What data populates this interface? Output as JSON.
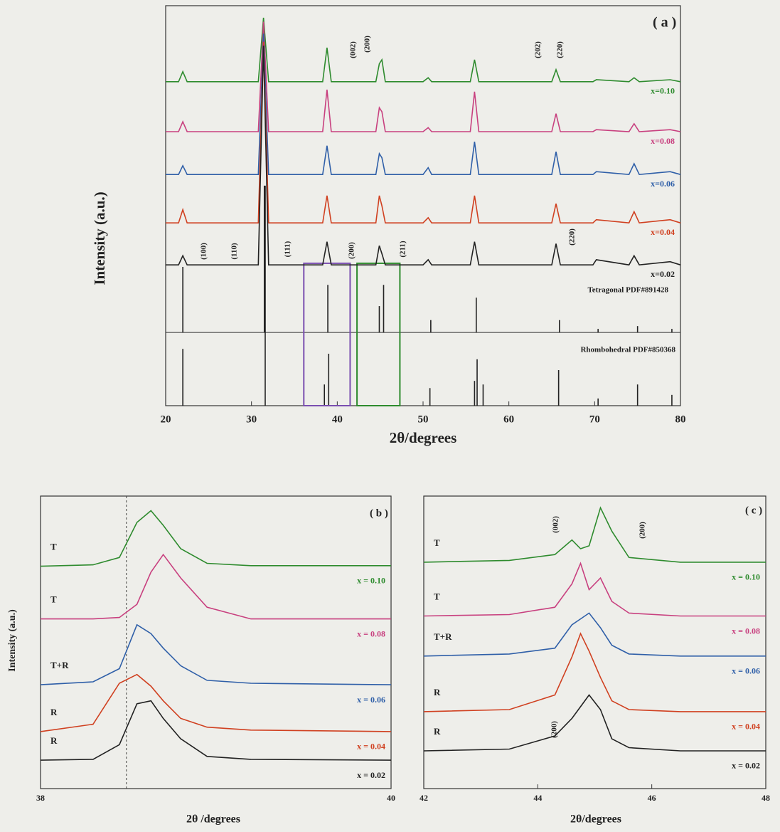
{
  "chart_data": [
    {
      "type": "line",
      "title": "( a )",
      "xlabel": "2θ/degrees",
      "ylabel": "Intensity (a.u.)",
      "xlim": [
        20,
        80
      ],
      "xticks": [
        20,
        30,
        40,
        50,
        60,
        70,
        80
      ],
      "ylim": [
        0,
        100
      ],
      "x": [
        20,
        21.5,
        22,
        22.5,
        30.8,
        31.4,
        32,
        38.3,
        38.8,
        39.3,
        44.5,
        44.9,
        45.2,
        45.6,
        50,
        50.6,
        51,
        55.5,
        56,
        56.5,
        65,
        65.5,
        66,
        69.8,
        70.2,
        74,
        74.6,
        75.2,
        78.8,
        80
      ],
      "series": [
        {
          "name": "x=0.10",
          "color": "#2e8b2e",
          "values": [
            81,
            81,
            83.5,
            81,
            81,
            97,
            81,
            81,
            89.5,
            81,
            81,
            85.5,
            86.5,
            81,
            81,
            82,
            81,
            81,
            86.5,
            81,
            81,
            84,
            81,
            81,
            81.5,
            81,
            82,
            81,
            81.5,
            81
          ]
        },
        {
          "name": "x=0.08",
          "color": "#c8407f",
          "values": [
            68.5,
            68.5,
            71,
            68.5,
            68.5,
            96,
            68.5,
            68.5,
            79,
            68.5,
            68.5,
            74.5,
            73.5,
            68.5,
            68.5,
            69.5,
            68.5,
            68.5,
            78.5,
            68.5,
            68.5,
            73,
            68.5,
            68.5,
            69,
            68.5,
            70.5,
            68.5,
            69,
            68.5
          ]
        },
        {
          "name": "x=0.06",
          "color": "#2f5fa8",
          "values": [
            57.8,
            57.8,
            60,
            57.8,
            57.8,
            93,
            57.8,
            57.8,
            65,
            57.8,
            57.8,
            63,
            62,
            57.8,
            57.8,
            59.5,
            57.8,
            57.8,
            66,
            57.8,
            57.8,
            63.5,
            57.8,
            57.8,
            58.5,
            57.8,
            60.5,
            57.8,
            58.5,
            57.8
          ]
        },
        {
          "name": "x=0.04",
          "color": "#d04020",
          "values": [
            45.7,
            45.7,
            49,
            45.7,
            45.7,
            91,
            45.7,
            45.7,
            52.5,
            45.7,
            45.7,
            52.5,
            50,
            45.7,
            45.7,
            47,
            45.7,
            45.7,
            52.5,
            45.7,
            45.7,
            50.5,
            45.7,
            45.7,
            46.5,
            45.7,
            48.5,
            45.7,
            46.5,
            45.7
          ]
        },
        {
          "name": "x=0.02",
          "color": "#222222",
          "values": [
            35.2,
            35.2,
            37.5,
            35.2,
            35.2,
            90,
            35.2,
            35.2,
            41,
            35.2,
            35.2,
            40,
            38,
            35.2,
            35.2,
            36.5,
            35.2,
            35.2,
            41,
            35.2,
            35.2,
            40.5,
            35.2,
            35.2,
            36.5,
            35.2,
            37.5,
            35.2,
            36,
            35.2
          ]
        }
      ],
      "reference_patterns": [
        {
          "name": "Tetragonal PDF#891428",
          "color": "#222222",
          "baseline": 18.3,
          "x": [
            22,
            31.5,
            38.9,
            44.9,
            45.4,
            50.9,
            56.2,
            65.9,
            70.4,
            75,
            79
          ],
          "values": [
            34.7,
            55,
            30.2,
            24.9,
            30.2,
            21.4,
            27,
            21.4,
            19.2,
            19.9,
            19.2
          ]
        },
        {
          "name": "Rhombohedral PDF#850368",
          "color": "#222222",
          "baseline": 0,
          "x": [
            22,
            31.6,
            38.5,
            39,
            50.8,
            56,
            56.3,
            57,
            65.8,
            70.4,
            75,
            79
          ],
          "values": [
            14.2,
            55,
            5.3,
            13,
            4.4,
            6.2,
            11.6,
            5.3,
            8.9,
            1.8,
            5.3,
            2.7
          ]
        }
      ],
      "highlight_boxes": [
        {
          "color": "#7a4fb0",
          "xlim": [
            36.1,
            41.5
          ],
          "ylim": [
            0,
            35.6
          ]
        },
        {
          "color": "#2e8b2e",
          "xlim": [
            42.3,
            47.3
          ],
          "ylim": [
            0,
            35.6
          ]
        }
      ],
      "annotations": [
        "(002)",
        "(200)",
        "(202)",
        "(220)",
        "(100)",
        "(110)",
        "(111)",
        "(200)",
        "(211)",
        "(220)"
      ]
    },
    {
      "type": "line",
      "title": "( b )",
      "xlabel": "2θ /degrees",
      "ylabel": "Intensity (a.u.)",
      "xlim": [
        38,
        40
      ],
      "xticks": [
        38,
        40
      ],
      "ylim": [
        0,
        100
      ],
      "vline": 38.49,
      "x": [
        38,
        38.3,
        38.45,
        38.55,
        38.63,
        38.7,
        38.8,
        38.95,
        39.2,
        40
      ],
      "series": [
        {
          "name": "x = 0.10",
          "color": "#2e8b2e",
          "values": [
            76,
            76.5,
            79,
            91,
            95,
            90,
            82,
            77,
            76.2,
            76.2
          ]
        },
        {
          "name": "x = 0.08",
          "color": "#c8407f",
          "values": [
            58,
            58,
            58.5,
            63,
            74,
            80,
            72,
            62,
            58,
            58
          ]
        },
        {
          "name": "x = 0.06",
          "color": "#2f5fa8",
          "values": [
            35.5,
            36.5,
            41,
            56,
            53,
            48,
            42,
            37,
            36,
            35.5
          ]
        },
        {
          "name": "x = 0.04",
          "color": "#d04020",
          "values": [
            19.5,
            22,
            36,
            39,
            35,
            30,
            24,
            21,
            20,
            19.5
          ]
        },
        {
          "name": "x = 0.02",
          "color": "#222222",
          "values": [
            9.7,
            10,
            15,
            29,
            30,
            24,
            17,
            11,
            10,
            9.7
          ]
        }
      ],
      "phases": [
        "T",
        "T",
        "T+R",
        "R",
        "R"
      ]
    },
    {
      "type": "line",
      "title": "( c )",
      "xlabel": "2θ/degrees",
      "xlim": [
        42,
        48
      ],
      "xticks": [
        42,
        44,
        46,
        48
      ],
      "ylim": [
        0,
        100
      ],
      "x": [
        42,
        43.5,
        44.3,
        44.6,
        44.75,
        44.9,
        45.1,
        45.3,
        45.6,
        46.5,
        48
      ],
      "series": [
        {
          "name": "x = 0.10",
          "color": "#2e8b2e",
          "values": [
            77.4,
            78,
            80,
            85,
            82,
            83,
            96,
            88,
            79,
            77.4,
            77.4
          ]
        },
        {
          "name": "x = 0.08",
          "color": "#c8407f",
          "values": [
            59,
            59.5,
            62,
            70,
            77,
            68,
            72,
            64,
            60,
            59,
            59
          ]
        },
        {
          "name": "x = 0.06",
          "color": "#2f5fa8",
          "values": [
            45.3,
            46,
            48,
            56,
            58,
            60,
            55,
            49,
            46,
            45.3,
            45.3
          ]
        },
        {
          "name": "x = 0.04",
          "color": "#d04020",
          "values": [
            26.3,
            27,
            32,
            45,
            53,
            47,
            38,
            30,
            27,
            26.3,
            26.3
          ]
        },
        {
          "name": "x = 0.02",
          "color": "#222222",
          "values": [
            12.9,
            13.5,
            18,
            24,
            28,
            32,
            27,
            17,
            14,
            12.9,
            12.9
          ]
        }
      ],
      "phases": [
        "T",
        "T",
        "T+R",
        "R",
        "R"
      ],
      "annotations": [
        "(002)",
        "(200)",
        "(200)"
      ]
    }
  ]
}
